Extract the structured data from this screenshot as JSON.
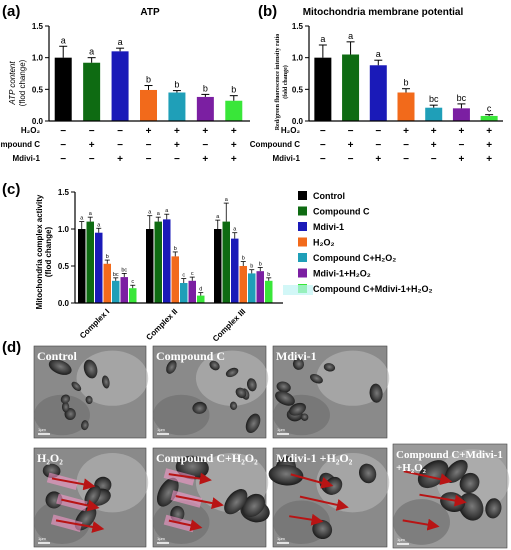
{
  "panels": {
    "a": {
      "letter": "(a)",
      "chart_data": {
        "type": "bar",
        "title": "ATP",
        "ylabel_line1": "ATP content",
        "ylabel_line2": "(flod change)",
        "ylim": [
          0,
          1.5
        ],
        "yticks": [
          "0.0",
          "0.5",
          "1.0",
          "1.5"
        ],
        "values": [
          1.0,
          0.92,
          1.1,
          0.49,
          0.45,
          0.38,
          0.32
        ],
        "errors": [
          0.18,
          0.08,
          0.05,
          0.07,
          0.03,
          0.04,
          0.08
        ],
        "letters": [
          "a",
          "a",
          "a",
          "b",
          "b",
          "b",
          "b"
        ]
      }
    },
    "b": {
      "letter": "(b)",
      "chart_data": {
        "type": "bar",
        "title": "Mitochondria membrane potential",
        "ylabel_line1": "Red/green fluorescence intensity ratio",
        "ylabel_line2": "(fold change)",
        "ylim": [
          0,
          1.5
        ],
        "yticks": [
          "0.0",
          "0.5",
          "1.0",
          "1.5"
        ],
        "values": [
          1.0,
          1.05,
          0.88,
          0.45,
          0.21,
          0.2,
          0.08
        ],
        "errors": [
          0.2,
          0.2,
          0.08,
          0.06,
          0.04,
          0.07,
          0.02
        ],
        "letters": [
          "a",
          "a",
          "a",
          "b",
          "bc",
          "bc",
          "c"
        ]
      }
    },
    "treatment_table": {
      "row_labels": [
        "H₂O₂",
        "Compound C",
        "Mdivi-1"
      ],
      "rows": [
        [
          "−",
          "−",
          "−",
          "+",
          "+",
          "+",
          "+"
        ],
        [
          "−",
          "+",
          "−",
          "−",
          "+",
          "−",
          "+"
        ],
        [
          "−",
          "−",
          "+",
          "−",
          "−",
          "+",
          "+"
        ]
      ]
    },
    "c": {
      "letter": "(c)",
      "chart_data": {
        "type": "bar",
        "ylabel_line1": "Mitochondria complex activity",
        "ylabel_line2": "(flod change)",
        "ylim": [
          0,
          1.5
        ],
        "yticks": [
          "0.0",
          "0.5",
          "1.0",
          "1.5"
        ],
        "categories": [
          "Complex I",
          "Complex II",
          "Complex III"
        ],
        "series": [
          {
            "name": "Control",
            "values": [
              1.0,
              1.0,
              1.0
            ],
            "errors": [
              0.1,
              0.18,
              0.12
            ],
            "letters": [
              "a",
              "a",
              "a"
            ]
          },
          {
            "name": "Compound C",
            "values": [
              1.1,
              1.1,
              1.1
            ],
            "errors": [
              0.06,
              0.06,
              0.25
            ],
            "letters": [
              "a",
              "a",
              "a"
            ]
          },
          {
            "name": "Mdivi-1",
            "values": [
              0.95,
              1.13,
              0.87
            ],
            "errors": [
              0.06,
              0.07,
              0.08
            ],
            "letters": [
              "a",
              "a",
              "a"
            ]
          },
          {
            "name": "H₂O₂",
            "values": [
              0.53,
              0.63,
              0.5
            ],
            "errors": [
              0.05,
              0.06,
              0.06
            ],
            "letters": [
              "b",
              "b",
              "b"
            ]
          },
          {
            "name": "Compound C+H₂O₂",
            "values": [
              0.3,
              0.27,
              0.4
            ],
            "errors": [
              0.04,
              0.06,
              0.05
            ],
            "letters": [
              "bc",
              "c",
              "b"
            ]
          },
          {
            "name": "Mdivi-1+H₂O₂",
            "values": [
              0.35,
              0.3,
              0.43
            ],
            "errors": [
              0.05,
              0.05,
              0.05
            ],
            "letters": [
              "bc",
              "c",
              "b"
            ]
          },
          {
            "name": "Compound C+Mdivi-1+H₂O₂",
            "values": [
              0.2,
              0.1,
              0.3
            ],
            "errors": [
              0.04,
              0.04,
              0.04
            ],
            "letters": [
              "c",
              "d",
              "b"
            ]
          }
        ],
        "legend_position": "right"
      }
    },
    "d": {
      "letter": "(d)",
      "micrographs": [
        {
          "label": "Control",
          "scale": "1μm"
        },
        {
          "label": "Compound C",
          "scale": "1μm"
        },
        {
          "label": "Mdivi-1",
          "scale": "1μm"
        },
        {
          "label": "H₂O₂",
          "scale": "1μm"
        },
        {
          "label": "Compound C+H₂O₂",
          "scale": "1μm"
        },
        {
          "label": "Mdivi-1 +H₂O₂",
          "scale": "1μm"
        },
        {
          "label": "Compound C+Mdivi-1",
          "label2": "+H₂O₂",
          "scale": "1μm"
        }
      ]
    }
  },
  "colors": {
    "series": [
      "#000000",
      "#0e6b12",
      "#1a1ab8",
      "#f26a1b",
      "#1f9fb8",
      "#7b1fa2",
      "#39e639"
    ],
    "highlight": "#ff9ad0",
    "arrow": "#b81414"
  }
}
